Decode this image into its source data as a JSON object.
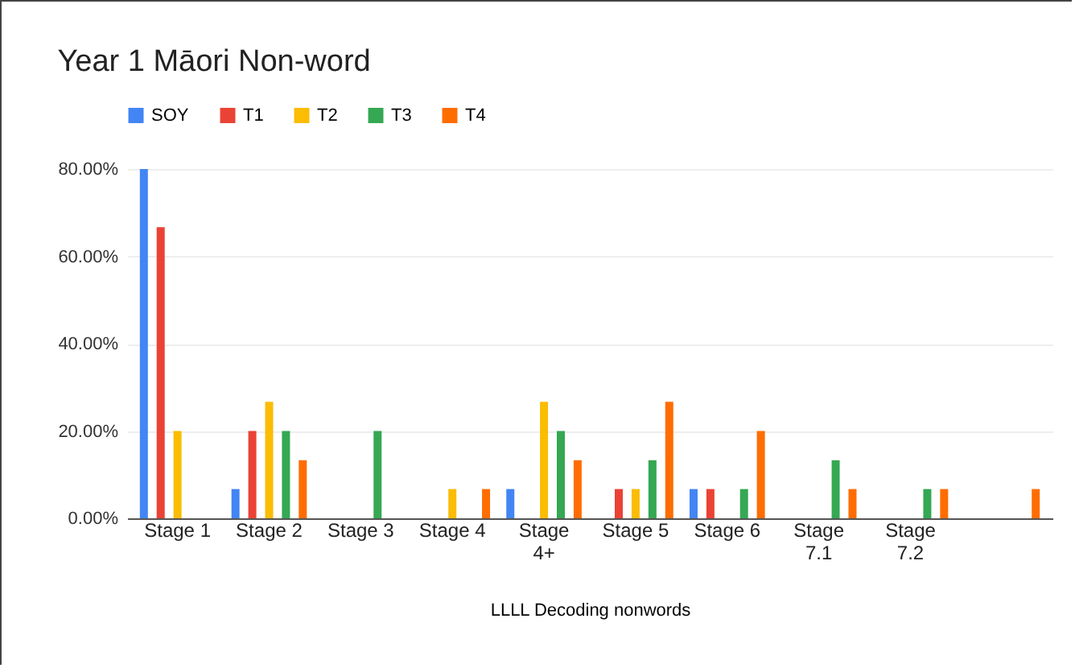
{
  "chart_data": {
    "type": "bar",
    "title": "Year 1 Māori Non-word",
    "xlabel": "LLLL Decoding nonwords",
    "categories": [
      "Stage 1",
      "Stage 2",
      "Stage 3",
      "Stage 4",
      "Stage 4+",
      "Stage 5",
      "Stage 6",
      "Stage 7.1",
      "Stage 7.2",
      null
    ],
    "series": [
      {
        "name": "SOY",
        "color": "#4285f4",
        "values": [
          80,
          6.7,
          0,
          0,
          6.7,
          0,
          6.7,
          0,
          0,
          0
        ]
      },
      {
        "name": "T1",
        "color": "#ea4335",
        "values": [
          66.7,
          20,
          0,
          0,
          0,
          6.7,
          6.7,
          0,
          0,
          0
        ]
      },
      {
        "name": "T2",
        "color": "#fbbc04",
        "values": [
          20,
          26.7,
          0,
          6.7,
          26.7,
          6.7,
          0,
          0,
          0,
          0
        ]
      },
      {
        "name": "T3",
        "color": "#34a853",
        "values": [
          0,
          20,
          20,
          0,
          20,
          13.3,
          6.7,
          13.3,
          6.7,
          0
        ]
      },
      {
        "name": "T4",
        "color": "#ff6d01",
        "values": [
          0,
          13.3,
          0,
          6.7,
          13.3,
          26.7,
          20,
          6.7,
          6.7,
          6.7
        ]
      }
    ],
    "ylim": [
      0,
      80
    ],
    "yticks": [
      {
        "value": 0,
        "label": "0.00%"
      },
      {
        "value": 20,
        "label": "20.00%"
      },
      {
        "value": 40,
        "label": "40.00%"
      },
      {
        "value": 60,
        "label": "60.00%"
      },
      {
        "value": 80,
        "label": "80.00%"
      }
    ],
    "grid": "y",
    "legend": "top"
  }
}
